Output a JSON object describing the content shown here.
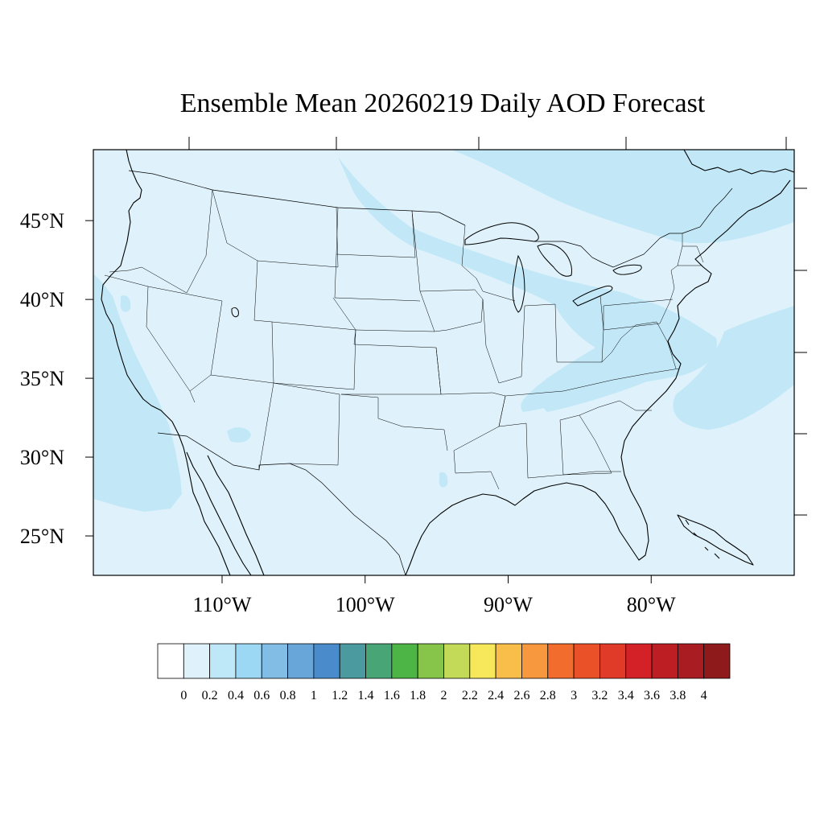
{
  "title": "Ensemble Mean 20260219 Daily AOD Forecast",
  "map": {
    "lon_range": [
      -119,
      -70
    ],
    "lat_range": [
      22.5,
      49.5
    ],
    "lat_labels": [
      "45°N",
      "40°N",
      "35°N",
      "30°N",
      "25°N"
    ],
    "lat_values": [
      45,
      40,
      35,
      30,
      25
    ],
    "lon_labels": [
      "110°W",
      "100°W",
      "90°W",
      "80°W"
    ],
    "lon_values": [
      -110,
      -100,
      -90,
      -80
    ],
    "background_color": "#dff2fb",
    "elevated_aod_color": "#c2e8f8"
  },
  "colorbar": {
    "labels": [
      "0",
      "0.2",
      "0.4",
      "0.6",
      "0.8",
      "1",
      "1.2",
      "1.4",
      "1.6",
      "1.8",
      "2",
      "2.2",
      "2.4",
      "2.6",
      "2.8",
      "3",
      "3.2",
      "3.4",
      "3.6",
      "3.8",
      "4"
    ],
    "colors": [
      "#ffffff",
      "#dff2fb",
      "#bee7f8",
      "#9cd7f4",
      "#82bde6",
      "#68a6da",
      "#4a8ccb",
      "#4a9aa0",
      "#48a676",
      "#4db446",
      "#86c54a",
      "#c3d958",
      "#f7e75a",
      "#f9be4a",
      "#f8983e",
      "#f26c2e",
      "#eb5128",
      "#e03a28",
      "#d42128",
      "#bd1e24",
      "#a81c22",
      "#8f1a1b"
    ]
  }
}
